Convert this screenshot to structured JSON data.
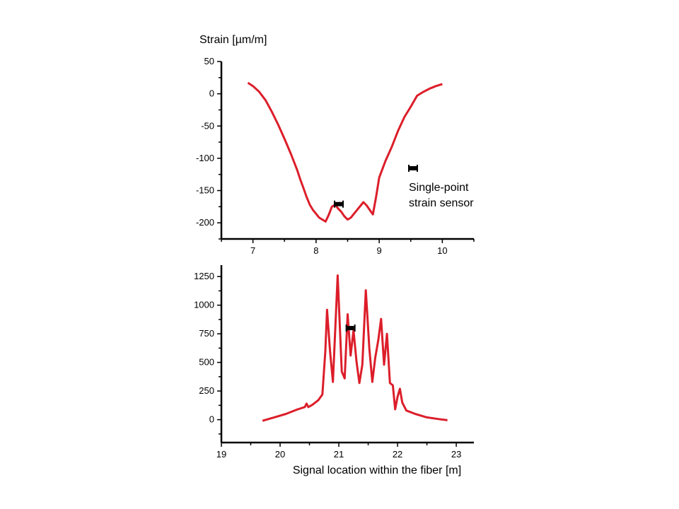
{
  "colors": {
    "curve": "#dc1e2a",
    "axis": "#000000",
    "marker": "#000000"
  },
  "legend": {
    "line1": "Single-point",
    "line2": "strain sensor",
    "icon": "sensor-marker-icon"
  },
  "chart_data": [
    {
      "type": "line",
      "ylabel": "Strain [µm/m]",
      "xlim": [
        6.5,
        10.5
      ],
      "ylim": [
        -225,
        50
      ],
      "x_ticks": [
        7,
        8,
        9,
        10
      ],
      "x_tick_labels": [
        "7",
        "8",
        "9",
        "10"
      ],
      "y_ticks": [
        -200,
        -150,
        -100,
        -50,
        0,
        50
      ],
      "y_tick_labels": [
        "-200",
        "-150",
        "-100",
        "-50",
        "0",
        "50"
      ],
      "series": [
        {
          "x": [
            6.92,
            7.0,
            7.1,
            7.2,
            7.3,
            7.4,
            7.5,
            7.6,
            7.7,
            7.75,
            7.8,
            7.85,
            7.9,
            7.95,
            8.0,
            8.05,
            8.1,
            8.15,
            8.2,
            8.25,
            8.3,
            8.35,
            8.4,
            8.45,
            8.5,
            8.55,
            8.6,
            8.65,
            8.7,
            8.75,
            8.8,
            8.85,
            8.9,
            8.95,
            9.0,
            9.1,
            9.2,
            9.3,
            9.4,
            9.5,
            9.6,
            9.7,
            9.8,
            9.9,
            10.0
          ],
          "y": [
            17,
            12,
            3,
            -10,
            -28,
            -48,
            -70,
            -93,
            -118,
            -133,
            -146,
            -160,
            -172,
            -180,
            -186,
            -192,
            -195,
            -198,
            -188,
            -175,
            -172,
            -178,
            -183,
            -190,
            -195,
            -192,
            -186,
            -180,
            -174,
            -168,
            -173,
            -180,
            -187,
            -160,
            -130,
            -104,
            -82,
            -57,
            -36,
            -20,
            -3,
            3,
            8,
            12,
            15
          ]
        }
      ],
      "sensor_marker": {
        "x": 8.36,
        "y": -171
      }
    },
    {
      "type": "line",
      "xlabel": "Signal location within the fiber [m]",
      "xlim": [
        19,
        23.3
      ],
      "ylim": [
        -200,
        1350
      ],
      "x_ticks": [
        19,
        20,
        21,
        22,
        23
      ],
      "x_tick_labels": [
        "19",
        "20",
        "21",
        "22",
        "23"
      ],
      "y_ticks": [
        0,
        250,
        500,
        750,
        1000,
        1250
      ],
      "y_tick_labels": [
        "0",
        "250",
        "500",
        "750",
        "1000",
        "1250"
      ],
      "series": [
        {
          "x": [
            19.7,
            19.9,
            20.1,
            20.3,
            20.42,
            20.45,
            20.48,
            20.55,
            20.65,
            20.72,
            20.77,
            20.8,
            20.85,
            20.9,
            20.98,
            21.05,
            21.1,
            21.15,
            21.2,
            21.25,
            21.3,
            21.35,
            21.4,
            21.46,
            21.52,
            21.57,
            21.62,
            21.67,
            21.72,
            21.77,
            21.82,
            21.87,
            21.92,
            21.96,
            22.0,
            22.04,
            22.08,
            22.15,
            22.3,
            22.5,
            22.7,
            22.85
          ],
          "y": [
            -10,
            20,
            50,
            90,
            110,
            140,
            110,
            130,
            170,
            220,
            600,
            960,
            600,
            330,
            1260,
            420,
            360,
            920,
            560,
            780,
            510,
            320,
            480,
            1130,
            620,
            330,
            540,
            690,
            880,
            480,
            750,
            320,
            300,
            90,
            200,
            270,
            150,
            80,
            50,
            20,
            5,
            -5
          ]
        }
      ],
      "sensor_marker": {
        "x": 21.2,
        "y": 800
      }
    }
  ]
}
